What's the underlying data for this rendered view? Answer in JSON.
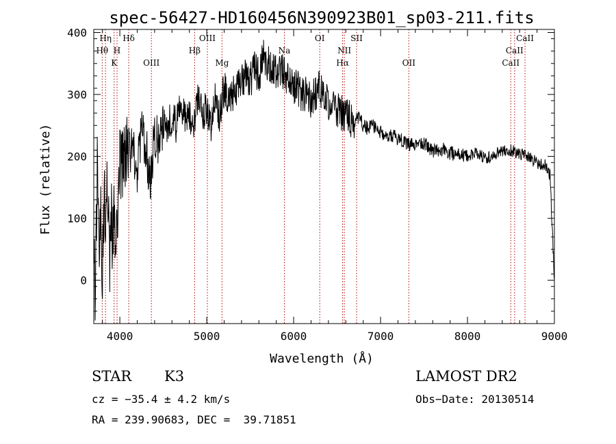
{
  "chart_data": {
    "type": "line",
    "title": "spec-56427-HD160456N390923B01_sp03-211.fits",
    "xlabel": "Wavelength (Å)",
    "ylabel": "Flux (relative)",
    "xlim": [
      3700,
      9000
    ],
    "ylim": [
      -70,
      405
    ],
    "xticks": [
      4000,
      5000,
      6000,
      7000,
      8000,
      9000
    ],
    "yticks": [
      0,
      100,
      200,
      300,
      400
    ],
    "grid": false,
    "line_color": "#000000",
    "marker_color": "#aa0000",
    "series": [
      {
        "x": [
          3700,
          3720,
          3740,
          3760,
          3780,
          3800,
          3820,
          3840,
          3860,
          3880,
          3900,
          3920,
          3940,
          3960,
          3980,
          4000,
          4050,
          4100,
          4150,
          4200,
          4250,
          4300,
          4350,
          4400,
          4450,
          4500,
          4550,
          4600,
          4650,
          4700,
          4750,
          4800,
          4850,
          4900,
          4950,
          5000,
          5050,
          5100,
          5150,
          5200,
          5250,
          5300,
          5350,
          5400,
          5450,
          5500,
          5550,
          5600,
          5650,
          5700,
          5750,
          5800,
          5850,
          5900,
          5950,
          6000,
          6050,
          6100,
          6150,
          6200,
          6250,
          6300,
          6350,
          6400,
          6450,
          6500,
          6550,
          6600,
          6650,
          6700,
          6750,
          6800,
          6850,
          6900,
          6950,
          7000,
          7100,
          7200,
          7300,
          7400,
          7500,
          7600,
          7700,
          7800,
          7900,
          8000,
          8100,
          8200,
          8300,
          8400,
          8500,
          8600,
          8700,
          8800,
          8900,
          8950,
          9000
        ],
        "values": [
          40,
          -20,
          170,
          60,
          110,
          30,
          150,
          80,
          170,
          20,
          120,
          60,
          120,
          40,
          150,
          200,
          185,
          210,
          215,
          175,
          240,
          215,
          160,
          240,
          215,
          245,
          250,
          265,
          250,
          280,
          260,
          270,
          255,
          290,
          265,
          280,
          240,
          295,
          265,
          310,
          290,
          300,
          310,
          320,
          330,
          320,
          340,
          330,
          360,
          350,
          345,
          335,
          340,
          330,
          320,
          315,
          310,
          300,
          305,
          290,
          300,
          310,
          295,
          285,
          285,
          275,
          270,
          265,
          260,
          258,
          262,
          250,
          245,
          250,
          245,
          240,
          235,
          230,
          222,
          218,
          220,
          210,
          212,
          205,
          203,
          200,
          205,
          198,
          200,
          210,
          210,
          205,
          198,
          190,
          185,
          170,
          0
        ]
      }
    ],
    "line_markers": [
      {
        "label": "Hη",
        "x": 3835,
        "row": 0
      },
      {
        "label": "Hθ",
        "x": 3797,
        "row": 1
      },
      {
        "label": "Hδ",
        "x": 4102,
        "row": 0
      },
      {
        "label": "H",
        "x": 3968,
        "row": 1
      },
      {
        "label": "K",
        "x": 3934,
        "row": 2
      },
      {
        "label": "OIII",
        "x": 4363,
        "row": 2
      },
      {
        "label": "OIII",
        "x": 5007,
        "row": 0
      },
      {
        "label": "Hβ",
        "x": 4861,
        "row": 1
      },
      {
        "label": "Mg",
        "x": 5175,
        "row": 2
      },
      {
        "label": "Na",
        "x": 5893,
        "row": 1
      },
      {
        "label": "OI",
        "x": 6300,
        "row": 0
      },
      {
        "label": "NII",
        "x": 6583,
        "row": 1
      },
      {
        "label": "Hα",
        "x": 6563,
        "row": 2
      },
      {
        "label": "OII",
        "x": 7325,
        "row": 2
      },
      {
        "label": "SII",
        "x": 6724,
        "row": 0
      },
      {
        "label": "CaII",
        "x": 8662,
        "row": 0
      },
      {
        "label": "CaII",
        "x": 8542,
        "row": 1
      },
      {
        "label": "CaII",
        "x": 8498,
        "row": 2
      }
    ]
  },
  "footer": {
    "object_type": "STAR",
    "spectral_class": "K3",
    "survey": "LAMOST DR2",
    "redshift": "cz = −35.4 ± 4.2 km/s",
    "obs_date": "Obs−Date: 20130514",
    "coords": "RA = 239.90683, DEC =  39.71851"
  }
}
